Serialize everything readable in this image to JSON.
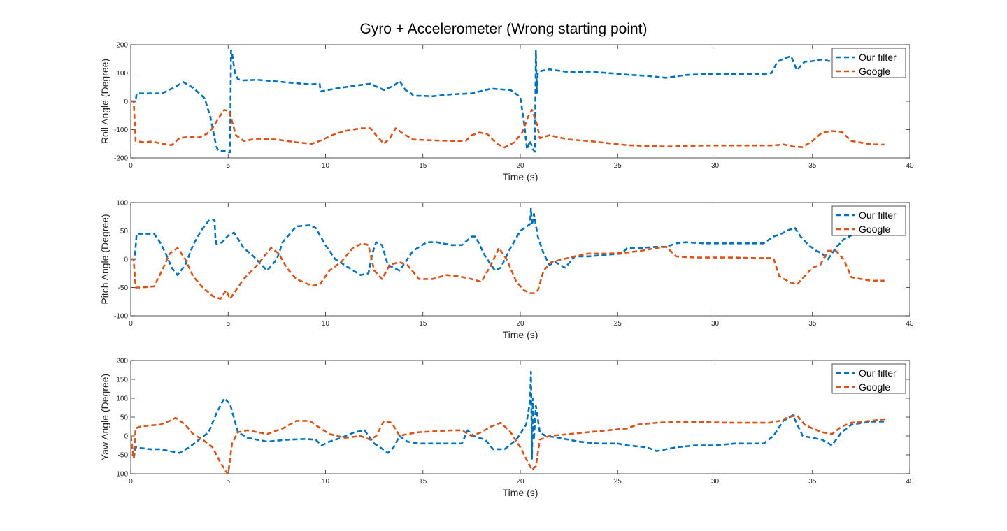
{
  "figure": {
    "title": "Gyro + Accelerometer (Wrong starting point)"
  },
  "colors": {
    "our_filter": "#0072BD",
    "google": "#D95319",
    "axes": "#262626",
    "background": "#ffffff"
  },
  "chart_data": [
    {
      "type": "line",
      "name": "roll",
      "title": "",
      "xlabel": "Time (s)",
      "ylabel": "Roll Angle (Degree)",
      "xlim": [
        0,
        40
      ],
      "ylim": [
        -200,
        200
      ],
      "xticks": [
        0,
        5,
        10,
        15,
        20,
        25,
        30,
        35,
        40
      ],
      "yticks": [
        -200,
        -100,
        0,
        100,
        200
      ],
      "grid": false,
      "legend_location": "top-right",
      "line_style": "dashed",
      "series": [
        {
          "name": "Our filter",
          "color": "#0072BD",
          "x": [
            0,
            0.25,
            0.3,
            1.2,
            1.6,
            2.2,
            2.7,
            3.2,
            3.8,
            4.1,
            4.3,
            4.4,
            4.5,
            4.8,
            5.0,
            5.1,
            5.15,
            5.2,
            5.35,
            5.5,
            5.8,
            6.5,
            7.5,
            8.5,
            9.2,
            9.7,
            9.75,
            10.5,
            11.5,
            12.3,
            13.0,
            13.5,
            13.8,
            14.1,
            14.4,
            14.5,
            15.5,
            16.5,
            17.5,
            18.5,
            19.5,
            20.0,
            20.2,
            20.35,
            20.5,
            20.65,
            20.75,
            20.8,
            20.85,
            20.9,
            21.1,
            21.5,
            22.5,
            23.5,
            24.5,
            25.5,
            26.5,
            27.5,
            28.5,
            29.5,
            30.5,
            31.5,
            32.5,
            32.9,
            33.2,
            33.5,
            33.9,
            34.2,
            34.6,
            35.0,
            35.5,
            36.0,
            36.5,
            37.0,
            37.2
          ],
          "y": [
            0,
            0,
            28,
            28,
            28,
            48,
            68,
            48,
            10,
            -60,
            -130,
            -160,
            -175,
            -175,
            -180,
            -180,
            180,
            170,
            100,
            78,
            74,
            76,
            70,
            64,
            60,
            62,
            35,
            45,
            55,
            62,
            40,
            55,
            72,
            40,
            28,
            20,
            18,
            25,
            28,
            45,
            40,
            15,
            -80,
            -170,
            -140,
            -170,
            -178,
            178,
            30,
            100,
            108,
            113,
            103,
            105,
            100,
            94,
            90,
            83,
            93,
            96,
            96,
            96,
            96,
            100,
            140,
            150,
            160,
            110,
            140,
            142,
            148,
            140,
            150,
            165,
            175
          ]
        },
        {
          "name": "Google",
          "color": "#D95319",
          "x": [
            0,
            0.15,
            0.25,
            0.4,
            0.7,
            1.1,
            1.6,
            2.1,
            2.5,
            3.0,
            3.5,
            3.9,
            4.2,
            4.5,
            4.8,
            5.05,
            5.4,
            5.8,
            6.5,
            7.5,
            8.5,
            9.3,
            9.7,
            10.5,
            11.0,
            11.8,
            12.3,
            12.6,
            13.0,
            13.3,
            13.6,
            14.0,
            14.5,
            15.5,
            16.5,
            17.2,
            17.5,
            17.9,
            18.3,
            18.8,
            19.2,
            19.7,
            20.1,
            20.4,
            20.6,
            20.85,
            21.0,
            21.5,
            22.5,
            23.5,
            24.5,
            25.5,
            26.5,
            27.5,
            28.5,
            29.5,
            30.5,
            31.5,
            32.5,
            33.0,
            33.5,
            34.0,
            34.5,
            35.0,
            35.5,
            36.0,
            36.5,
            37.0,
            38.0,
            38.7
          ],
          "y": [
            0,
            0,
            -140,
            -142,
            -145,
            -142,
            -150,
            -155,
            -130,
            -125,
            -128,
            -115,
            -95,
            -60,
            -30,
            -35,
            -120,
            -140,
            -132,
            -135,
            -145,
            -150,
            -140,
            -115,
            -105,
            -95,
            -95,
            -120,
            -150,
            -130,
            -95,
            -115,
            -135,
            -138,
            -140,
            -140,
            -120,
            -110,
            -115,
            -150,
            -163,
            -145,
            -110,
            -55,
            -30,
            -80,
            -130,
            -120,
            -135,
            -140,
            -148,
            -155,
            -158,
            -160,
            -158,
            -156,
            -156,
            -156,
            -156,
            -156,
            -152,
            -160,
            -162,
            -140,
            -110,
            -105,
            -108,
            -140,
            -152,
            -153
          ]
        }
      ]
    },
    {
      "type": "line",
      "name": "pitch",
      "title": "",
      "xlabel": "Time (s)",
      "ylabel": "Pitch Angle (Degree)",
      "xlim": [
        0,
        40
      ],
      "ylim": [
        -100,
        100
      ],
      "xticks": [
        0,
        5,
        10,
        15,
        20,
        25,
        30,
        35,
        40
      ],
      "yticks": [
        -100,
        -50,
        0,
        50,
        100
      ],
      "grid": false,
      "legend_location": "top-right",
      "line_style": "dashed",
      "series": [
        {
          "name": "Our filter",
          "color": "#0072BD",
          "x": [
            0,
            0.2,
            0.3,
            1.2,
            1.5,
            1.8,
            2.1,
            2.4,
            2.8,
            3.2,
            3.6,
            4.0,
            4.3,
            4.35,
            4.4,
            4.7,
            5.0,
            5.3,
            5.8,
            6.3,
            7.0,
            7.5,
            7.8,
            8.5,
            9.2,
            9.5,
            10.0,
            10.5,
            11.2,
            11.8,
            12.2,
            12.4,
            12.6,
            12.9,
            13.2,
            13.8,
            14.5,
            15.2,
            15.7,
            16.5,
            17.0,
            17.5,
            17.7,
            18.2,
            18.7,
            19.0,
            19.5,
            20.0,
            20.5,
            20.55,
            20.6,
            20.7,
            20.9,
            21.2,
            21.5,
            21.8,
            22.3,
            22.8,
            23.5,
            24.5,
            25.2,
            25.5,
            26.2,
            27.0,
            27.5,
            28.0,
            28.5,
            29.5,
            30.5,
            31.5,
            32.5,
            33.0,
            33.4,
            33.8,
            34.1,
            34.4,
            34.8,
            35.2,
            35.5,
            35.8,
            36.2,
            36.6,
            37.0
          ],
          "y": [
            0,
            0,
            45,
            45,
            30,
            10,
            -15,
            -28,
            -10,
            25,
            50,
            68,
            70,
            35,
            27,
            30,
            42,
            47,
            20,
            5,
            -20,
            0,
            30,
            58,
            60,
            55,
            25,
            0,
            -15,
            -28,
            -25,
            10,
            30,
            25,
            -10,
            -20,
            15,
            30,
            30,
            25,
            25,
            40,
            40,
            5,
            -20,
            -15,
            20,
            50,
            62,
            90,
            60,
            80,
            40,
            10,
            -10,
            -5,
            -15,
            5,
            5,
            8,
            10,
            20,
            20,
            22,
            22,
            28,
            30,
            28,
            28,
            28,
            28,
            40,
            45,
            52,
            55,
            40,
            25,
            15,
            10,
            0,
            20,
            35,
            42
          ]
        },
        {
          "name": "Google",
          "color": "#D95319",
          "x": [
            0,
            0.15,
            0.25,
            0.5,
            1.2,
            1.6,
            2.0,
            2.4,
            2.8,
            3.2,
            3.7,
            4.2,
            4.6,
            4.9,
            5.1,
            5.4,
            5.8,
            6.5,
            7.2,
            7.6,
            8.0,
            8.5,
            9.3,
            9.7,
            10.2,
            10.8,
            11.4,
            11.9,
            12.2,
            12.5,
            12.9,
            13.3,
            13.8,
            14.2,
            14.8,
            15.5,
            16.2,
            16.8,
            17.5,
            18.0,
            18.5,
            18.9,
            19.3,
            19.8,
            20.2,
            20.5,
            20.7,
            20.9,
            21.2,
            21.6,
            22.2,
            22.8,
            23.5,
            24.5,
            25.5,
            26.2,
            27.0,
            27.5,
            28.0,
            29.0,
            30.0,
            31.0,
            32.0,
            33.0,
            33.3,
            33.8,
            34.2,
            34.6,
            35.0,
            35.4,
            35.8,
            36.2,
            36.6,
            37.0,
            38.0,
            38.7
          ],
          "y": [
            0,
            0,
            -50,
            -50,
            -48,
            -20,
            10,
            20,
            0,
            -30,
            -50,
            -65,
            -70,
            -55,
            -70,
            -55,
            -35,
            -10,
            20,
            10,
            -15,
            -35,
            -47,
            -45,
            -20,
            -5,
            20,
            28,
            25,
            -20,
            -35,
            -10,
            -5,
            -10,
            -35,
            -35,
            -28,
            -30,
            -35,
            -40,
            -10,
            20,
            0,
            -40,
            -55,
            -60,
            -60,
            -55,
            -20,
            -5,
            0,
            5,
            10,
            10,
            12,
            15,
            20,
            22,
            5,
            3,
            3,
            3,
            2,
            2,
            -30,
            -40,
            -45,
            -30,
            -15,
            -10,
            15,
            15,
            0,
            -32,
            -38,
            -38
          ]
        }
      ]
    },
    {
      "type": "line",
      "name": "yaw",
      "title": "",
      "xlabel": "Time (s)",
      "ylabel": "Yaw Angle (Degree)",
      "xlim": [
        0,
        40
      ],
      "ylim": [
        -100,
        200
      ],
      "xticks": [
        0,
        5,
        10,
        15,
        20,
        25,
        30,
        35,
        40
      ],
      "yticks": [
        -100,
        -50,
        0,
        50,
        100,
        150,
        200
      ],
      "grid": false,
      "legend_location": "top-right",
      "line_style": "dashed",
      "series": [
        {
          "name": "Our filter",
          "color": "#0072BD",
          "x": [
            0,
            0.15,
            0.25,
            0.5,
            1.0,
            1.5,
            2.0,
            2.5,
            3.0,
            3.5,
            4.0,
            4.4,
            4.8,
            5.1,
            5.5,
            6.0,
            7.0,
            8.0,
            9.0,
            9.5,
            9.8,
            10.2,
            10.8,
            11.5,
            12.0,
            12.5,
            12.8,
            13.2,
            13.5,
            13.8,
            14.2,
            14.8,
            15.5,
            16.5,
            17.0,
            17.3,
            17.6,
            18.2,
            18.6,
            19.2,
            19.8,
            20.3,
            20.5,
            20.55,
            20.6,
            20.65,
            20.7,
            20.8,
            21.0,
            21.3,
            22.0,
            22.5,
            23.0,
            24.0,
            25.0,
            25.5,
            26.5,
            27.0,
            27.5,
            28.0,
            29.0,
            30.0,
            31.0,
            32.0,
            32.5,
            33.0,
            33.5,
            34.0,
            34.5,
            35.0,
            35.5,
            36.0,
            36.5,
            37.0,
            38.0,
            38.8
          ],
          "y": [
            0,
            -60,
            -30,
            -32,
            -35,
            -35,
            -40,
            -45,
            -30,
            -10,
            10,
            60,
            100,
            85,
            10,
            -5,
            -15,
            -10,
            -8,
            -10,
            -25,
            -15,
            -5,
            10,
            15,
            -20,
            -30,
            -45,
            -30,
            0,
            -15,
            -20,
            -20,
            -20,
            -20,
            15,
            0,
            -10,
            -35,
            -35,
            -10,
            30,
            90,
            170,
            -60,
            100,
            -10,
            80,
            10,
            0,
            -5,
            -10,
            -15,
            -20,
            -20,
            -25,
            -30,
            -40,
            -35,
            -30,
            -25,
            -25,
            -20,
            -20,
            -20,
            0,
            40,
            55,
            0,
            -5,
            -10,
            -25,
            10,
            30,
            38,
            38
          ]
        },
        {
          "name": "Google",
          "color": "#D95319",
          "x": [
            0,
            0.15,
            0.25,
            0.5,
            1.0,
            1.5,
            2.0,
            2.3,
            2.8,
            3.2,
            3.7,
            4.2,
            4.6,
            4.9,
            5.0,
            5.2,
            5.5,
            6.0,
            7.0,
            7.8,
            8.5,
            9.2,
            9.6,
            10.2,
            11.0,
            11.8,
            12.3,
            12.6,
            13.0,
            13.4,
            13.8,
            14.2,
            14.8,
            15.5,
            16.5,
            17.0,
            17.5,
            18.0,
            18.5,
            19.0,
            19.5,
            20.0,
            20.4,
            20.6,
            20.8,
            21.0,
            21.5,
            22.5,
            23.5,
            24.5,
            25.5,
            26.0,
            27.0,
            28.0,
            29.0,
            30.0,
            31.0,
            32.0,
            32.8,
            33.3,
            33.8,
            34.2,
            34.6,
            35.0,
            35.5,
            36.0,
            36.5,
            37.0,
            38.0,
            38.8
          ],
          "y": [
            0,
            -60,
            20,
            25,
            28,
            30,
            40,
            48,
            30,
            5,
            -10,
            -30,
            -70,
            -95,
            -100,
            -20,
            10,
            15,
            5,
            20,
            40,
            40,
            25,
            5,
            -5,
            0,
            -10,
            0,
            40,
            35,
            0,
            5,
            10,
            12,
            15,
            15,
            0,
            10,
            25,
            35,
            10,
            -30,
            -70,
            -90,
            -80,
            -10,
            0,
            5,
            10,
            15,
            20,
            30,
            35,
            38,
            37,
            36,
            35,
            35,
            35,
            40,
            50,
            55,
            30,
            20,
            10,
            5,
            25,
            35,
            40,
            45
          ]
        }
      ]
    }
  ]
}
